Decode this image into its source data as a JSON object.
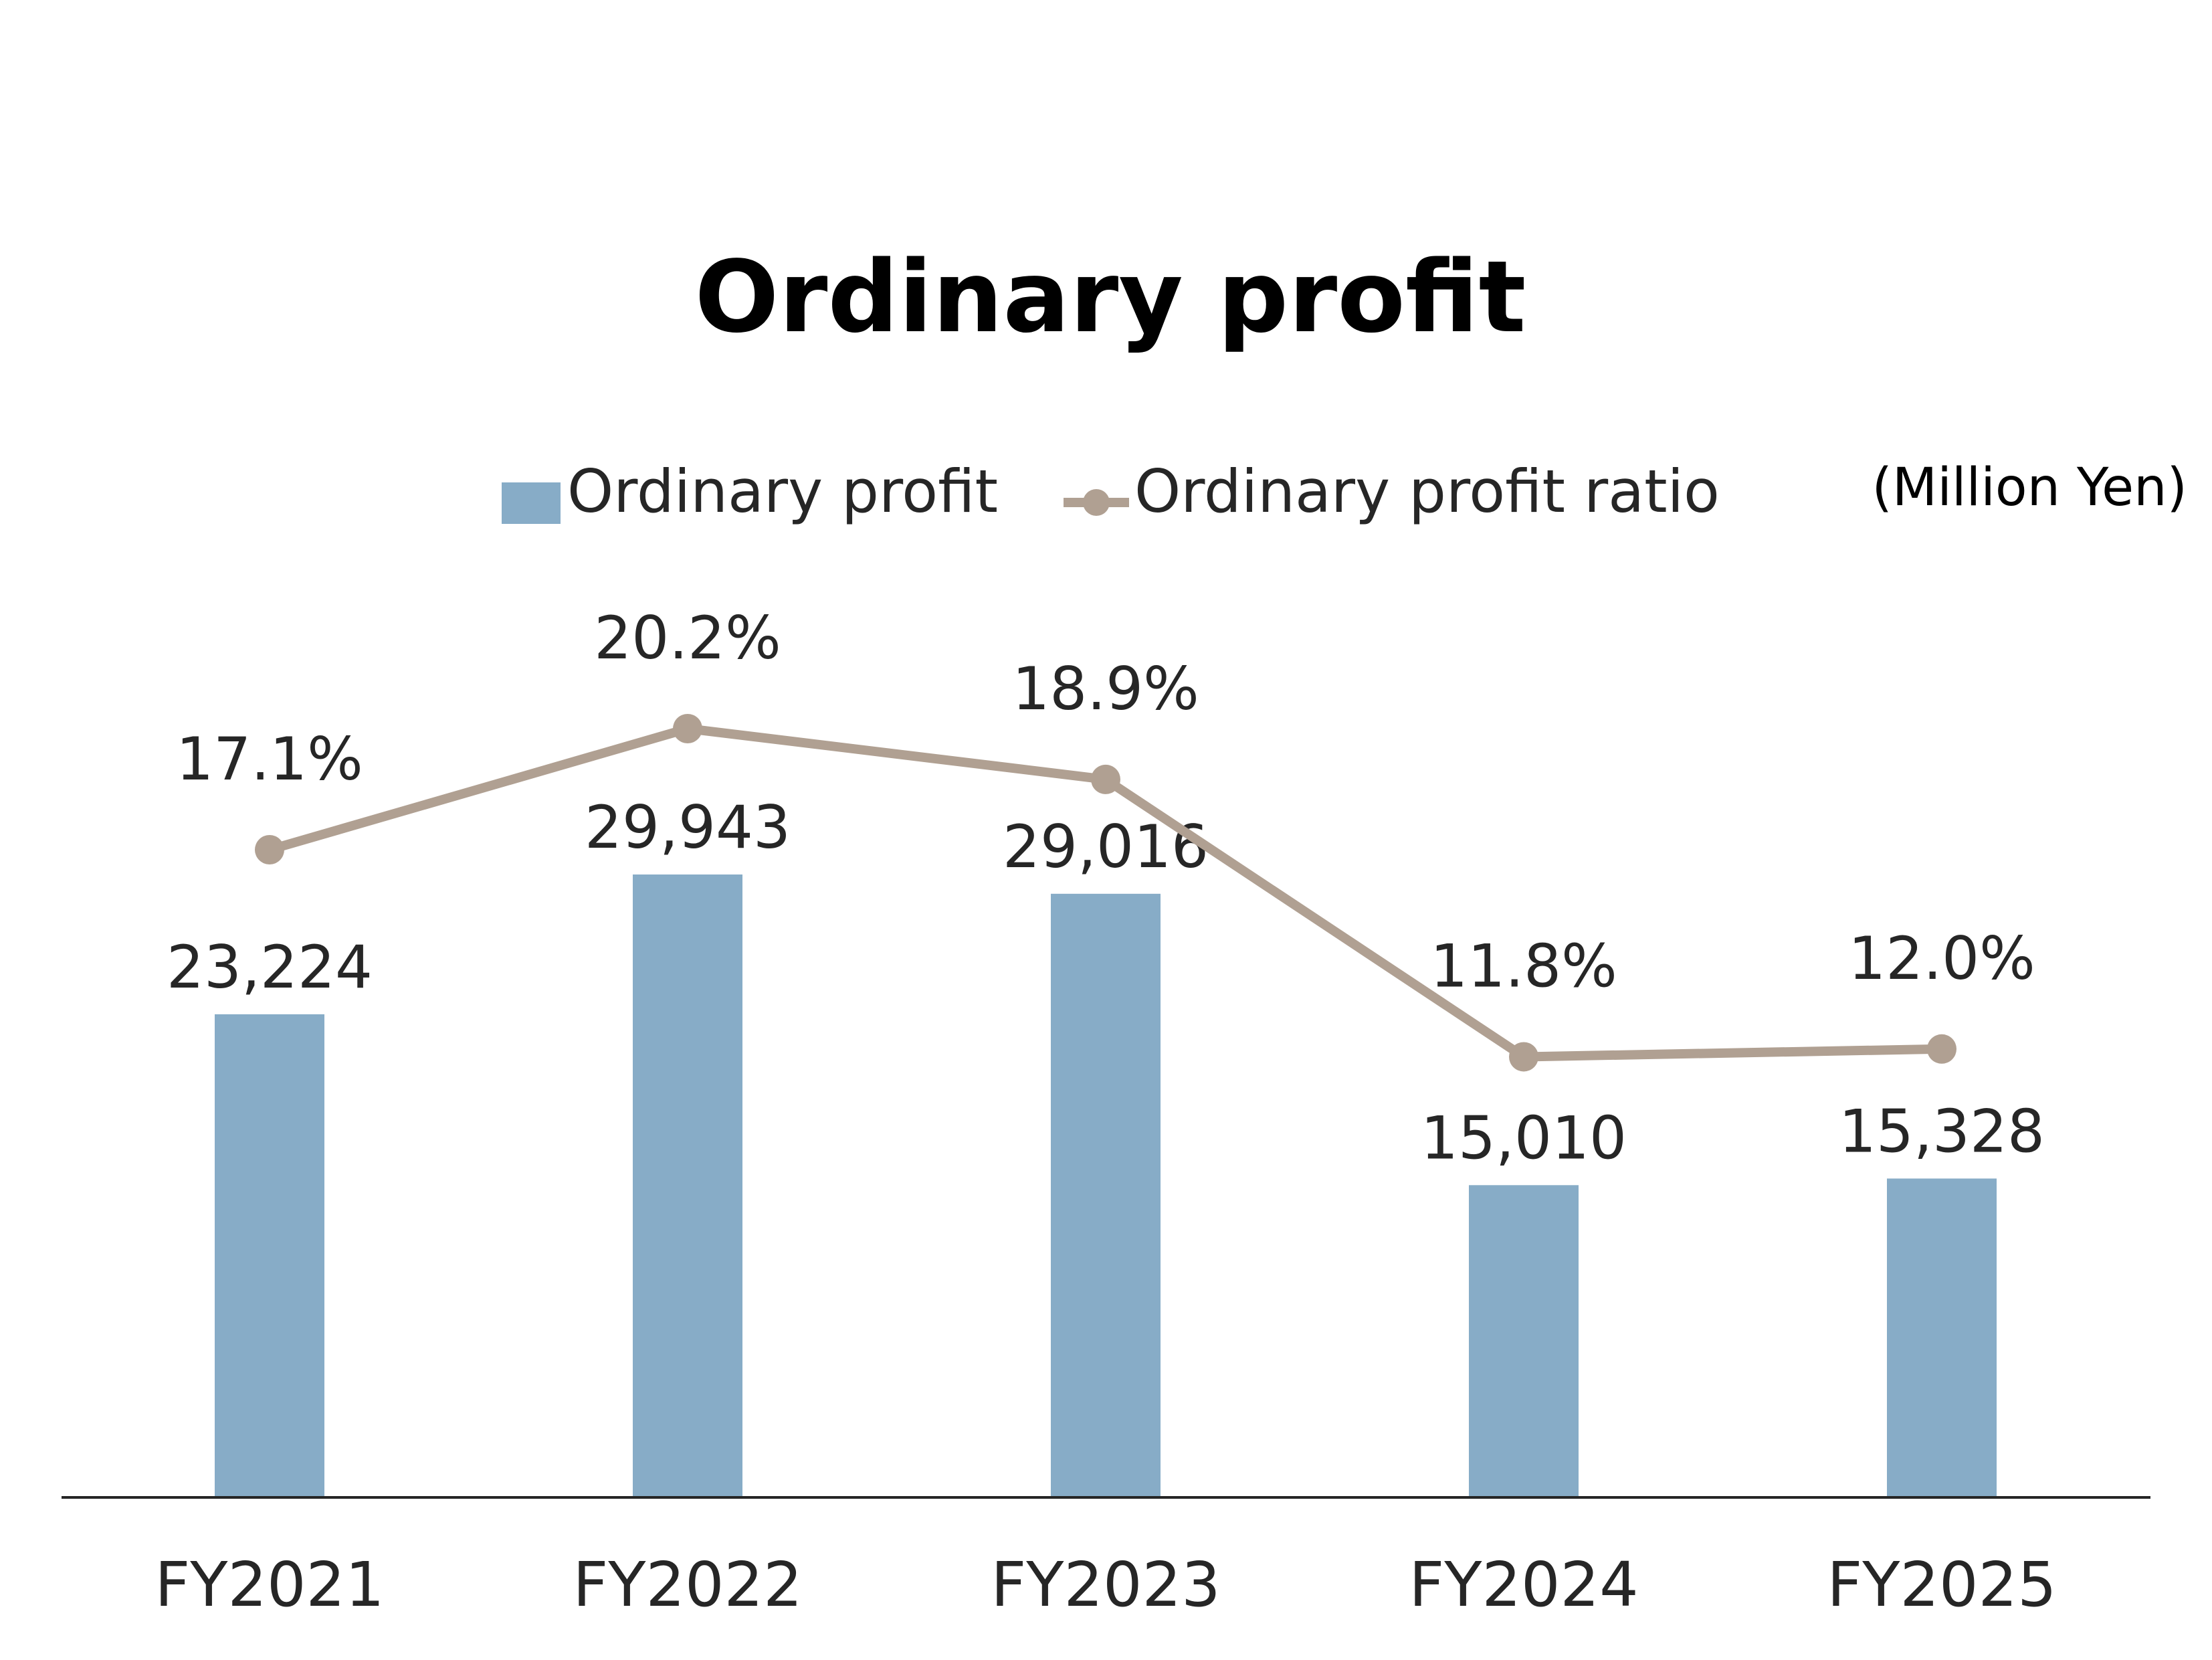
{
  "chart_data": {
    "type": "bar",
    "title": "Ordinary profit",
    "unit": "(Million Yen)",
    "categories": [
      "FY2021",
      "FY2022",
      "FY2023",
      "FY2024",
      "FY2025"
    ],
    "series": [
      {
        "name": "Ordinary profit",
        "kind": "bar",
        "axis": "primary",
        "color": "#87ACC7",
        "values": [
          23224,
          29943,
          29016,
          15010,
          15328
        ],
        "labels": [
          "23,224",
          "29,943",
          "29,016",
          "15,010",
          "15,328"
        ]
      },
      {
        "name": "Ordinary profit ratio",
        "kind": "line",
        "axis": "secondary",
        "color": "#B0A092",
        "values": [
          17.1,
          20.2,
          18.9,
          11.8,
          12.0
        ],
        "labels": [
          "17.1%",
          "20.2%",
          "18.9%",
          "11.8%",
          "12.0%"
        ]
      }
    ],
    "legend_position": "top",
    "grid": false
  }
}
